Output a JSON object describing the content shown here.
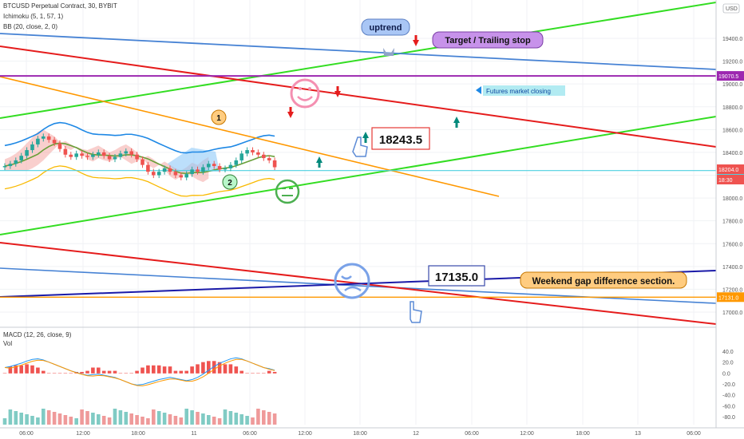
{
  "header": {
    "symbol": "BTCUSD Perpetual Contract, 30, BYBIT",
    "ichimoku": "Ichimoku (5, 1, 57, 1)",
    "bb": "BB (20, close, 2, 0)",
    "currency": "USD"
  },
  "macd_panel": {
    "macd_label": "MACD (12, 26, close, 9)",
    "vol_label": "Vol",
    "ticks": [
      "40.0",
      "20.0",
      "0.0",
      "-20.0",
      "-40.0",
      "-60.0",
      "-80.0"
    ]
  },
  "price_axis": {
    "ticks": [
      "19400.0",
      "19200.0",
      "19000.0",
      "18800.0",
      "18600.0",
      "18400.0",
      "18200.0",
      "18000.0",
      "17800.0",
      "17600.0",
      "17400.0",
      "17200.0",
      "17000.0"
    ]
  },
  "time_axis": {
    "ticks": [
      "06:00",
      "12:00",
      "18:00",
      "11",
      "06:00",
      "12:00",
      "18:00",
      "12",
      "06:00",
      "12:00",
      "18:00",
      "13",
      "06:00"
    ]
  },
  "price_labels": {
    "level_purple": "19070.5",
    "level_cyan": "18240.5",
    "last_price": "18204.0",
    "countdown": "18:30",
    "level_orange": "17131.0"
  },
  "annotations": {
    "uptrend": "uptrend",
    "target": "Target / Trailing stop",
    "futures_closing": "Futures market closing",
    "price_high": "18243.5",
    "price_low": "17135.0",
    "weekend_gap": "Weekend gap difference section.",
    "marker_1": "1",
    "marker_2": "2"
  },
  "colors": {
    "up": "#26a69a",
    "down": "#ef5350",
    "green_line": "#33dd22",
    "red_line": "#e51c1c",
    "blue_line": "#4682d4",
    "orange_line": "#ff9800",
    "purple_line": "#9c27b0",
    "navy_line": "#1a1aa8",
    "cyan_line": "#4dd0e1"
  },
  "chart_data": {
    "type": "candlestick",
    "title": "BTCUSD Perpetual Contract, 30, BYBIT",
    "ylim": [
      16900,
      19550
    ],
    "closes": [
      18280,
      18300,
      18330,
      18370,
      18420,
      18470,
      18520,
      18540,
      18510,
      18480,
      18430,
      18380,
      18360,
      18390,
      18370,
      18360,
      18380,
      18400,
      18370,
      18340,
      18360,
      18390,
      18410,
      18380,
      18340,
      18290,
      18230,
      18200,
      18230,
      18260,
      18230,
      18200,
      18180,
      18210,
      18250,
      18230,
      18270,
      18300,
      18280,
      18250,
      18260,
      18290,
      18330,
      18390,
      18420,
      18400,
      18380,
      18350,
      18330,
      18270
    ],
    "macd": [
      10,
      12,
      15,
      18,
      22,
      25,
      26,
      24,
      20,
      16,
      12,
      8,
      4,
      1,
      -2,
      -4,
      -3,
      -2,
      -4,
      -6,
      -8,
      -12,
      -16,
      -20,
      -22,
      -21,
      -18,
      -15,
      -12,
      -10,
      -8,
      -10,
      -12,
      -14,
      -12,
      -8,
      -2,
      5,
      12,
      18,
      22,
      26,
      28,
      26,
      22,
      18,
      14,
      10,
      8,
      5
    ],
    "levels": {
      "purple": 19070.5,
      "cyan": 18240.5,
      "orange": 17131.0
    },
    "markers": {
      "high": 18243.5,
      "low": 17135.0
    }
  }
}
